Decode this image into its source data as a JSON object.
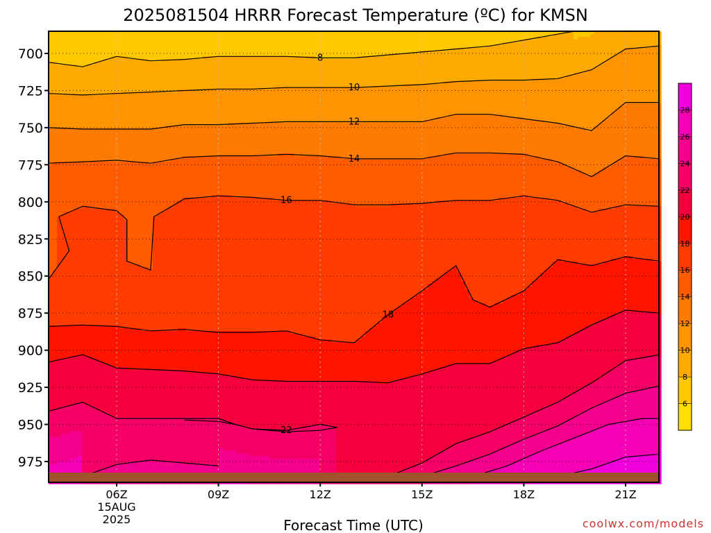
{
  "title": "2025081504 HRRR Forecast Temperature (ºC) for KMSN",
  "xlabel": "Forecast Time (UTC)",
  "credit": "coolwx.com/models",
  "date_label": {
    "day": "15AUG",
    "year": "2025"
  },
  "chart_data": {
    "type": "contour",
    "title": "2025081504 HRRR Forecast Temperature (ºC) for KMSN",
    "xlabel": "Forecast Time (UTC)",
    "ylabel": "",
    "x_ticks": [
      "06Z",
      "09Z",
      "12Z",
      "15Z",
      "18Z",
      "21Z"
    ],
    "x_tick_hours": [
      6,
      9,
      12,
      15,
      18,
      21
    ],
    "xlim": [
      4,
      22
    ],
    "y_ticks": [
      700,
      725,
      750,
      775,
      800,
      825,
      850,
      875,
      900,
      925,
      950,
      975
    ],
    "ylim": [
      990,
      685
    ],
    "y_inverted": true,
    "grid": true,
    "colorbar": {
      "levels": [
        4,
        6,
        8,
        10,
        12,
        14,
        16,
        18,
        20,
        22,
        24,
        26,
        28,
        30
      ],
      "tick_labels": [
        6,
        8,
        10,
        12,
        14,
        16,
        18,
        20,
        22,
        24,
        26,
        28
      ],
      "colors": [
        "#ffe000",
        "#ffc800",
        "#ffaa00",
        "#ff9400",
        "#ff7a00",
        "#ff5c00",
        "#ff3c00",
        "#ff1400",
        "#f5003c",
        "#f50064",
        "#f5008c",
        "#f500b4",
        "#f000dc"
      ]
    },
    "contour_lines": [
      {
        "value": 8,
        "label": "8",
        "points": [
          [
            4,
            706
          ],
          [
            5,
            709
          ],
          [
            6,
            702
          ],
          [
            7,
            705
          ],
          [
            8,
            704
          ],
          [
            9,
            702
          ],
          [
            10,
            702
          ],
          [
            11,
            702
          ],
          [
            12,
            703
          ],
          [
            13,
            703
          ],
          [
            14,
            701
          ],
          [
            15,
            699
          ],
          [
            16,
            697
          ],
          [
            17,
            695
          ],
          [
            18,
            691
          ],
          [
            19,
            687
          ],
          [
            19.5,
            685
          ]
        ]
      },
      {
        "value": 10,
        "label": "10",
        "points": [
          [
            4,
            727
          ],
          [
            5,
            728
          ],
          [
            6,
            727
          ],
          [
            7,
            726
          ],
          [
            8,
            725
          ],
          [
            9,
            724
          ],
          [
            10,
            724
          ],
          [
            11,
            723
          ],
          [
            12,
            723
          ],
          [
            13,
            723
          ],
          [
            14,
            722
          ],
          [
            15,
            721
          ],
          [
            16,
            719
          ],
          [
            17,
            718
          ],
          [
            18,
            718
          ],
          [
            19,
            717
          ],
          [
            20,
            711
          ],
          [
            21,
            697
          ],
          [
            22,
            695
          ]
        ]
      },
      {
        "value": 12,
        "label": "12",
        "points": [
          [
            4,
            750
          ],
          [
            5,
            751
          ],
          [
            6,
            751
          ],
          [
            7,
            751
          ],
          [
            8,
            748
          ],
          [
            9,
            748
          ],
          [
            10,
            747
          ],
          [
            11,
            746
          ],
          [
            12,
            746
          ],
          [
            13,
            746
          ],
          [
            14,
            746
          ],
          [
            15,
            746
          ],
          [
            16,
            741
          ],
          [
            17,
            741
          ],
          [
            18,
            744
          ],
          [
            19,
            747
          ],
          [
            20,
            752
          ],
          [
            21,
            733
          ],
          [
            22,
            733
          ]
        ]
      },
      {
        "value": 14,
        "label": "14",
        "points": [
          [
            4,
            774
          ],
          [
            5,
            773
          ],
          [
            6,
            772
          ],
          [
            7,
            774
          ],
          [
            8,
            770
          ],
          [
            9,
            769
          ],
          [
            10,
            769
          ],
          [
            11,
            768
          ],
          [
            12,
            769
          ],
          [
            13,
            771
          ],
          [
            14,
            771
          ],
          [
            15,
            771
          ],
          [
            16,
            767
          ],
          [
            17,
            767
          ],
          [
            18,
            768
          ],
          [
            19,
            773
          ],
          [
            20,
            783
          ],
          [
            21,
            769
          ],
          [
            22,
            771
          ]
        ]
      },
      {
        "value": 16,
        "label": "16",
        "points": [
          [
            4,
            852
          ],
          [
            4.6,
            833
          ],
          [
            4.3,
            810
          ],
          [
            5,
            803
          ],
          [
            6,
            806
          ],
          [
            6.3,
            812
          ],
          [
            6.3,
            840
          ],
          [
            7,
            846
          ],
          [
            7.1,
            810
          ],
          [
            8,
            798
          ],
          [
            9,
            796
          ],
          [
            10,
            797
          ],
          [
            11,
            799
          ],
          [
            12,
            799
          ],
          [
            13,
            802
          ],
          [
            14,
            802
          ],
          [
            15,
            801
          ],
          [
            16,
            799
          ],
          [
            17,
            799
          ],
          [
            18,
            796
          ],
          [
            19,
            799
          ],
          [
            20,
            807
          ],
          [
            21,
            802
          ],
          [
            22,
            803
          ]
        ]
      },
      {
        "value": 18,
        "label": "18",
        "points": [
          [
            4,
            884
          ],
          [
            5,
            883
          ],
          [
            6,
            884
          ],
          [
            7,
            887
          ],
          [
            8,
            886
          ],
          [
            9,
            888
          ],
          [
            10,
            888
          ],
          [
            11,
            887
          ],
          [
            12,
            893
          ],
          [
            13,
            895
          ],
          [
            14,
            876
          ],
          [
            15,
            860
          ],
          [
            16,
            843
          ],
          [
            16.5,
            866
          ],
          [
            17,
            871
          ],
          [
            18,
            860
          ],
          [
            19,
            839
          ],
          [
            20,
            843
          ],
          [
            21,
            837
          ],
          [
            22,
            840
          ]
        ]
      },
      {
        "value": 20,
        "label": "",
        "points": [
          [
            4,
            908
          ],
          [
            5,
            903
          ],
          [
            6,
            912
          ],
          [
            7,
            913
          ],
          [
            8,
            914
          ],
          [
            9,
            916
          ],
          [
            10,
            920
          ],
          [
            11,
            921
          ],
          [
            12,
            921
          ],
          [
            13,
            921
          ],
          [
            14,
            922
          ],
          [
            15,
            916
          ],
          [
            16,
            909
          ],
          [
            17,
            909
          ],
          [
            18,
            899
          ],
          [
            19,
            895
          ],
          [
            20,
            883
          ],
          [
            21,
            873
          ],
          [
            22,
            875
          ]
        ]
      },
      {
        "value": 22,
        "label": "22",
        "points": [
          [
            4,
            941
          ],
          [
            5,
            935
          ],
          [
            6,
            946
          ],
          [
            7,
            946
          ],
          [
            8,
            946
          ],
          [
            9,
            946
          ],
          [
            9.5,
            950
          ],
          [
            10,
            953
          ],
          [
            11,
            954
          ],
          [
            12,
            950
          ],
          [
            12.5,
            952
          ],
          [
            12,
            954
          ],
          [
            11,
            955
          ],
          [
            10,
            953
          ],
          [
            9.5,
            950
          ],
          [
            9,
            948
          ],
          [
            8,
            947
          ]
        ]
      },
      {
        "value": 22,
        "label": "",
        "points": [
          [
            12,
            983
          ],
          [
            13,
            985
          ],
          [
            14,
            985
          ],
          [
            15,
            976
          ],
          [
            16,
            963
          ],
          [
            17,
            955
          ],
          [
            18,
            945
          ],
          [
            19,
            935
          ],
          [
            20,
            922
          ],
          [
            21,
            907
          ],
          [
            22,
            903
          ]
        ]
      },
      {
        "value": 24,
        "label": "",
        "points": [
          [
            5,
            985
          ],
          [
            6,
            977
          ],
          [
            7,
            974
          ],
          [
            8,
            976
          ],
          [
            9,
            978
          ]
        ]
      },
      {
        "value": 24,
        "label": "",
        "points": [
          [
            15,
            985
          ],
          [
            16,
            978
          ],
          [
            17,
            970
          ],
          [
            18,
            960
          ],
          [
            19,
            951
          ],
          [
            20,
            939
          ],
          [
            21,
            929
          ],
          [
            22,
            924
          ]
        ]
      },
      {
        "value": 26,
        "label": "",
        "points": [
          [
            16.5,
            985
          ],
          [
            17.5,
            978
          ],
          [
            18.5,
            968
          ],
          [
            19.5,
            959
          ],
          [
            20.5,
            950
          ],
          [
            21.5,
            946
          ],
          [
            22,
            946
          ]
        ]
      },
      {
        "value": 28,
        "label": "",
        "points": [
          [
            19,
            985
          ],
          [
            20,
            980
          ],
          [
            21,
            972
          ],
          [
            22,
            970
          ]
        ]
      }
    ]
  }
}
